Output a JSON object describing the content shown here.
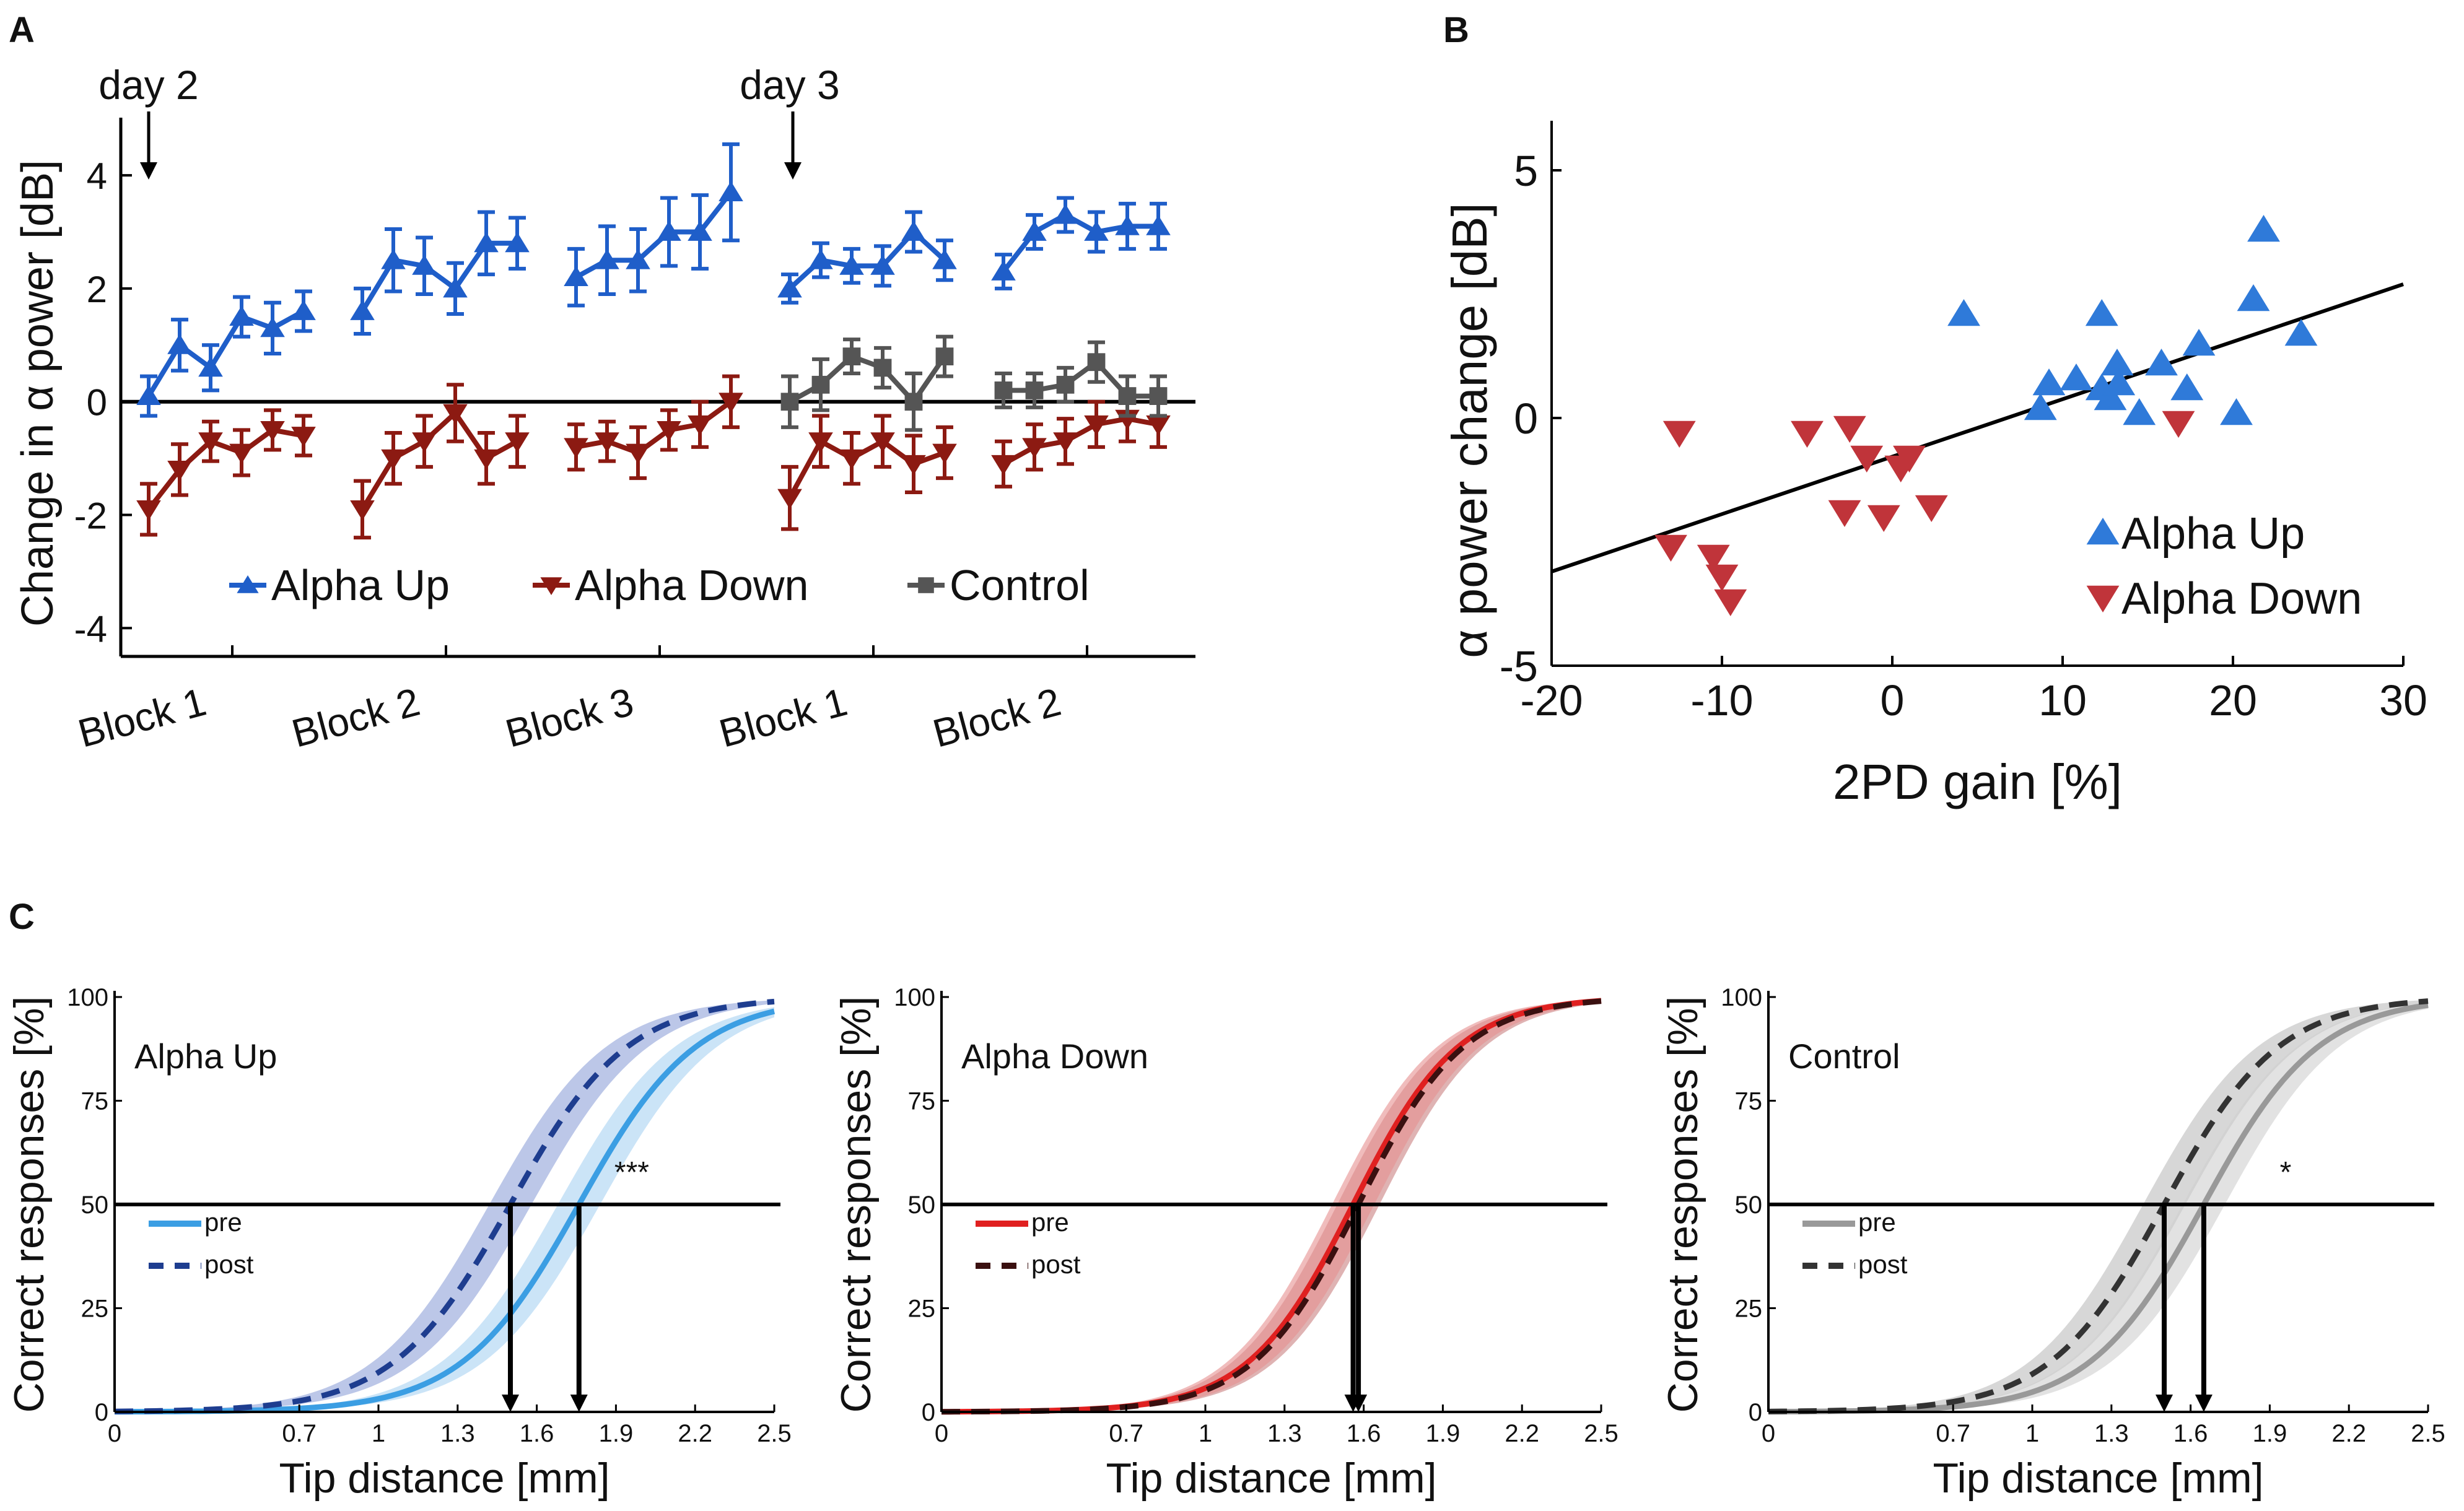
{
  "figure": {
    "panel_labels": [
      "A",
      "B",
      "C"
    ]
  },
  "chart_data": [
    {
      "panel": "A",
      "type": "line",
      "ylabel": "Change in α power [dB]",
      "ylim": [
        -4.5,
        4.8
      ],
      "yticks": [
        -4,
        -2,
        0,
        2,
        4
      ],
      "legend": [
        "Alpha Up",
        "Alpha Down",
        "Control"
      ],
      "blocks": [
        "Block 1",
        "Block 2",
        "Block 3",
        "Block 1",
        "Block 2"
      ],
      "annotations": [
        "day 2",
        "day 3"
      ],
      "series": [
        {
          "name": "Alpha Up",
          "color": "#1f5ec9",
          "marker": "up",
          "blocks": [
            {
              "values": [
                0.1,
                1.0,
                0.6,
                1.5,
                1.3,
                1.6
              ],
              "errors": [
                0.35,
                0.45,
                0.4,
                0.35,
                0.45,
                0.35
              ]
            },
            {
              "values": [
                1.6,
                2.5,
                2.4,
                2.0,
                2.8,
                2.8
              ],
              "errors": [
                0.4,
                0.55,
                0.5,
                0.45,
                0.55,
                0.45
              ]
            },
            {
              "values": [
                2.2,
                2.5,
                2.5,
                3.0,
                3.0,
                3.7
              ],
              "errors": [
                0.5,
                0.6,
                0.55,
                0.6,
                0.65,
                0.85
              ]
            },
            {
              "values": [
                2.0,
                2.5,
                2.4,
                2.4,
                3.0,
                2.5
              ],
              "errors": [
                0.25,
                0.3,
                0.3,
                0.35,
                0.35,
                0.35
              ]
            },
            {
              "values": [
                2.3,
                3.0,
                3.3,
                3.0,
                3.1,
                3.1
              ],
              "errors": [
                0.3,
                0.3,
                0.3,
                0.35,
                0.4,
                0.4
              ]
            }
          ]
        },
        {
          "name": "Alpha Down",
          "color": "#8c1a12",
          "marker": "down",
          "blocks": [
            {
              "values": [
                -1.9,
                -1.2,
                -0.7,
                -0.9,
                -0.5,
                -0.6
              ],
              "errors": [
                0.45,
                0.45,
                0.35,
                0.4,
                0.35,
                0.35
              ]
            },
            {
              "values": [
                -1.9,
                -1.0,
                -0.7,
                -0.2,
                -1.0,
                -0.7
              ],
              "errors": [
                0.5,
                0.45,
                0.45,
                0.5,
                0.45,
                0.45
              ]
            },
            {
              "values": [
                -0.8,
                -0.7,
                -0.9,
                -0.5,
                -0.4,
                0.0
              ],
              "errors": [
                0.4,
                0.35,
                0.45,
                0.35,
                0.4,
                0.45
              ]
            },
            {
              "values": [
                -1.7,
                -0.7,
                -1.0,
                -0.7,
                -1.1,
                -0.9
              ],
              "errors": [
                0.55,
                0.45,
                0.45,
                0.45,
                0.5,
                0.45
              ]
            },
            {
              "values": [
                -1.1,
                -0.8,
                -0.7,
                -0.4,
                -0.3,
                -0.4
              ],
              "errors": [
                0.4,
                0.4,
                0.4,
                0.4,
                0.4,
                0.4
              ]
            }
          ]
        },
        {
          "name": "Control",
          "color": "#555555",
          "marker": "square",
          "blocks": [
            {
              "values": [
                0.0,
                0.3,
                0.8,
                0.6,
                0.0,
                0.8
              ],
              "errors": [
                0.45,
                0.45,
                0.3,
                0.35,
                0.5,
                0.35
              ]
            },
            {
              "values": [
                0.2,
                0.2,
                0.3,
                0.7,
                0.1,
                0.1
              ],
              "errors": [
                0.3,
                0.3,
                0.3,
                0.35,
                0.35,
                0.35
              ]
            }
          ]
        }
      ]
    },
    {
      "panel": "B",
      "type": "scatter",
      "xlabel": "2PD gain [%]",
      "ylabel": "α power change [dB]",
      "xlim": [
        -20,
        30
      ],
      "ylim": [
        -5,
        6
      ],
      "xticks": [
        -20,
        -10,
        0,
        10,
        20,
        30
      ],
      "yticks": [
        -5,
        0,
        5
      ],
      "legend": [
        "Alpha Up",
        "Alpha Down"
      ],
      "fit_line": {
        "x": [
          -20,
          30
        ],
        "y": [
          -3.1,
          2.7
        ]
      },
      "series": [
        {
          "name": "Alpha Up",
          "color": "#2f7ad9",
          "marker": "up",
          "points": [
            [
              4.2,
              2.1
            ],
            [
              8.7,
              0.2
            ],
            [
              9.2,
              0.7
            ],
            [
              10.8,
              0.8
            ],
            [
              12.3,
              2.1
            ],
            [
              12.3,
              0.6
            ],
            [
              12.8,
              0.4
            ],
            [
              13.2,
              1.1
            ],
            [
              13.3,
              0.7
            ],
            [
              14.5,
              0.1
            ],
            [
              15.8,
              1.1
            ],
            [
              17.3,
              0.6
            ],
            [
              18.0,
              1.5
            ],
            [
              20.2,
              0.1
            ],
            [
              21.2,
              2.4
            ],
            [
              21.8,
              3.8
            ],
            [
              24.0,
              1.7
            ]
          ]
        },
        {
          "name": "Alpha Down",
          "color": "#c0343a",
          "marker": "down",
          "points": [
            [
              -12.5,
              -0.3
            ],
            [
              -13.0,
              -2.6
            ],
            [
              -10.5,
              -2.8
            ],
            [
              -10.0,
              -3.2
            ],
            [
              -9.5,
              -3.7
            ],
            [
              -5.0,
              -0.3
            ],
            [
              -2.5,
              -0.2
            ],
            [
              -2.8,
              -1.9
            ],
            [
              -1.5,
              -0.8
            ],
            [
              -0.5,
              -2.0
            ],
            [
              0.5,
              -1.0
            ],
            [
              1.0,
              -0.8
            ],
            [
              2.3,
              -1.8
            ],
            [
              16.8,
              -0.1
            ]
          ]
        }
      ]
    },
    {
      "panel": "C1",
      "type": "line",
      "title": "Alpha Up",
      "xlabel": "Tip distance [mm]",
      "ylabel": "Correct responses [%]",
      "xticks": [
        "0",
        "0.7",
        "1",
        "1.3",
        "1.6",
        "1.9",
        "2.2",
        "2.5"
      ],
      "yticks": [
        "0",
        "25",
        "50",
        "75",
        "100"
      ],
      "xlim": [
        0,
        2.5
      ],
      "ylim": [
        0,
        100
      ],
      "significance": "***",
      "thresholds": [
        1.5,
        1.76
      ],
      "series": [
        {
          "name": "pre",
          "style": "solid",
          "color": "#3b9ee3",
          "band": "#a8d2f2",
          "x50": 1.76,
          "slope": 4.5
        },
        {
          "name": "post",
          "style": "dashed",
          "color": "#1e3d8f",
          "band": "#8fa1d8",
          "x50": 1.5,
          "slope": 4.5
        }
      ]
    },
    {
      "panel": "C2",
      "type": "line",
      "title": "Alpha Down",
      "xlabel": "Tip distance [mm]",
      "ylabel": "Correct responses [%]",
      "xticks": [
        "0",
        "0.7",
        "1",
        "1.3",
        "1.6",
        "1.9",
        "2.2",
        "2.5"
      ],
      "yticks": [
        "0",
        "25",
        "50",
        "75",
        "100"
      ],
      "xlim": [
        0,
        2.5
      ],
      "ylim": [
        0,
        100
      ],
      "significance": "",
      "thresholds": [
        1.56,
        1.58
      ],
      "series": [
        {
          "name": "pre",
          "style": "solid",
          "color": "#e02020",
          "band": "#e69090",
          "x50": 1.56,
          "slope": 5.0
        },
        {
          "name": "post",
          "style": "dashed",
          "color": "#3a1010",
          "band": "#c98080",
          "x50": 1.58,
          "slope": 5.0
        }
      ]
    },
    {
      "panel": "C3",
      "type": "line",
      "title": "Control",
      "xlabel": "Tip distance [mm]",
      "ylabel": "Correct responses [%]",
      "xticks": [
        "0",
        "0.7",
        "1",
        "1.3",
        "1.6",
        "1.9",
        "2.2",
        "2.5"
      ],
      "yticks": [
        "0",
        "25",
        "50",
        "75",
        "100"
      ],
      "xlim": [
        0,
        2.5
      ],
      "ylim": [
        0,
        100
      ],
      "significance": "*",
      "thresholds": [
        1.5,
        1.65
      ],
      "series": [
        {
          "name": "pre",
          "style": "solid",
          "color": "#999999",
          "band": "#cfcfcf",
          "x50": 1.65,
          "slope": 4.6
        },
        {
          "name": "post",
          "style": "dashed",
          "color": "#333333",
          "band": "#bdbdbd",
          "x50": 1.5,
          "slope": 4.6
        }
      ]
    }
  ]
}
